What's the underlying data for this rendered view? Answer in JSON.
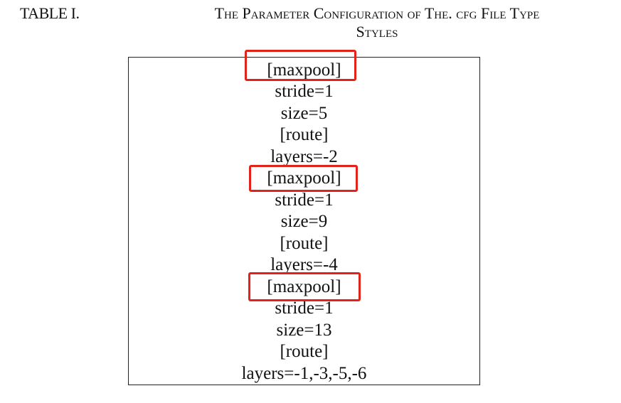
{
  "caption": {
    "label": "TABLE I.",
    "title_line1": "The Parameter Configuration of The. cfg File Type",
    "title_line2": "Styles"
  },
  "table": {
    "rows": [
      "[maxpool]",
      "stride=1",
      "size=5",
      "[route]",
      "layers=-2",
      "[maxpool]",
      "stride=1",
      "size=9",
      "[route]",
      "layers=-4",
      "[maxpool]",
      "stride=1",
      "size=13",
      "[route]",
      "layers=-1,-3,-5,-6"
    ]
  },
  "highlight": {
    "color": "#e2231a",
    "rows_highlighted": [
      "[maxpool]",
      "[maxpool]",
      "[maxpool]"
    ]
  }
}
